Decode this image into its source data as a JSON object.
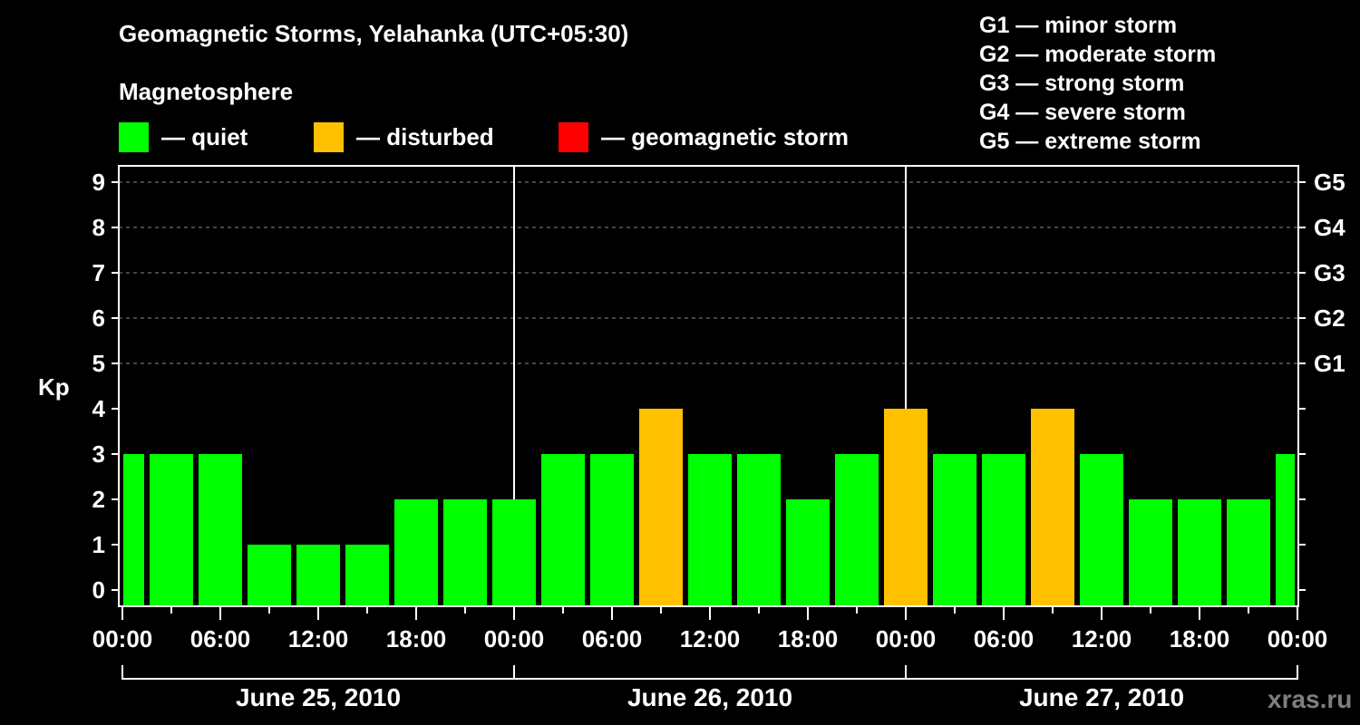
{
  "header": {
    "title": "Geomagnetic Storms, Yelahanka (UTC+05:30)",
    "magnetosphere_label": "Magnetosphere"
  },
  "legend": {
    "items": [
      {
        "label": "— quiet",
        "color": "#00ff00"
      },
      {
        "label": "— disturbed",
        "color": "#ffc000"
      },
      {
        "label": "— geomagnetic storm",
        "color": "#ff0000"
      }
    ]
  },
  "storm_scale": [
    "G1 — minor storm",
    "G2 — moderate storm",
    "G3 — strong storm",
    "G4 — severe storm",
    "G5 — extreme storm"
  ],
  "axes": {
    "ylabel": "Kp",
    "y_ticks": [
      "0",
      "1",
      "2",
      "3",
      "4",
      "5",
      "6",
      "7",
      "8",
      "9"
    ],
    "right_ticks": [
      {
        "kp": 5,
        "label": "G1"
      },
      {
        "kp": 6,
        "label": "G2"
      },
      {
        "kp": 7,
        "label": "G3"
      },
      {
        "kp": 8,
        "label": "G4"
      },
      {
        "kp": 9,
        "label": "G5"
      }
    ],
    "x_ticks": [
      "00:00",
      "06:00",
      "12:00",
      "18:00",
      "00:00",
      "06:00",
      "12:00",
      "18:00",
      "00:00",
      "06:00",
      "12:00",
      "18:00",
      "00:00"
    ],
    "dates": [
      "June 25, 2010",
      "June 26, 2010",
      "June 27, 2010"
    ]
  },
  "watermark": "xras.ru",
  "chart_data": {
    "type": "bar",
    "title": "Geomagnetic Storms, Yelahanka (UTC+05:30)",
    "xlabel": "",
    "ylabel": "Kp",
    "ylim": [
      0,
      9
    ],
    "interval_hours": 3,
    "first_interval_start": "June 24, 2010 22:30",
    "categories": [
      "Jun24 22:30",
      "Jun25 01:30",
      "Jun25 04:30",
      "Jun25 07:30",
      "Jun25 10:30",
      "Jun25 13:30",
      "Jun25 16:30",
      "Jun25 19:30",
      "Jun25 22:30",
      "Jun26 01:30",
      "Jun26 04:30",
      "Jun26 07:30",
      "Jun26 10:30",
      "Jun26 13:30",
      "Jun26 16:30",
      "Jun26 19:30",
      "Jun26 22:30",
      "Jun27 01:30",
      "Jun27 04:30",
      "Jun27 07:30",
      "Jun27 10:30",
      "Jun27 13:30",
      "Jun27 16:30",
      "Jun27 19:30",
      "Jun27 22:30"
    ],
    "values": [
      3,
      3,
      3,
      1,
      1,
      1,
      2,
      2,
      2,
      3,
      3,
      4,
      3,
      3,
      2,
      3,
      4,
      3,
      3,
      4,
      3,
      2,
      2,
      2,
      3
    ],
    "status": [
      "quiet",
      "quiet",
      "quiet",
      "quiet",
      "quiet",
      "quiet",
      "quiet",
      "quiet",
      "quiet",
      "quiet",
      "quiet",
      "disturbed",
      "quiet",
      "quiet",
      "quiet",
      "quiet",
      "disturbed",
      "quiet",
      "quiet",
      "disturbed",
      "quiet",
      "quiet",
      "quiet",
      "quiet",
      "quiet"
    ],
    "colors": {
      "quiet": "#00ff00",
      "disturbed": "#ffc000",
      "storm": "#ff0000"
    },
    "grid": "dashed horizontal at Kp 5–9",
    "legend": [
      "quiet",
      "disturbed",
      "geomagnetic storm"
    ],
    "secondary_axis": {
      "G1": 5,
      "G2": 6,
      "G3": 7,
      "G4": 8,
      "G5": 9
    }
  }
}
